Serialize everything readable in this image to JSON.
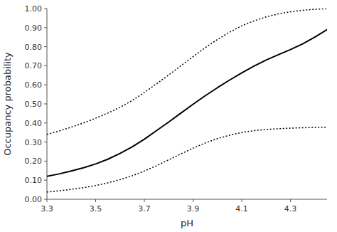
{
  "chart_data": {
    "type": "line",
    "xlabel": "pH",
    "ylabel": "Occupancy probability",
    "x": [
      3.3,
      3.35,
      3.4,
      3.45,
      3.5,
      3.55,
      3.6,
      3.65,
      3.7,
      3.75,
      3.8,
      3.85,
      3.9,
      3.95,
      4.0,
      4.05,
      4.1,
      4.15,
      4.2,
      4.25,
      4.3,
      4.35,
      4.4,
      4.45
    ],
    "series": [
      {
        "color": "#000000",
        "line_style": "solid",
        "values": [
          0.12,
          0.133,
          0.148,
          0.165,
          0.185,
          0.21,
          0.24,
          0.275,
          0.315,
          0.36,
          0.405,
          0.452,
          0.498,
          0.543,
          0.585,
          0.625,
          0.663,
          0.698,
          0.73,
          0.758,
          0.785,
          0.815,
          0.85,
          0.89
        ]
      },
      {
        "color": "#000000",
        "line_style": "dotted",
        "values": [
          0.34,
          0.358,
          0.378,
          0.4,
          0.425,
          0.452,
          0.482,
          0.518,
          0.56,
          0.605,
          0.652,
          0.7,
          0.748,
          0.795,
          0.838,
          0.876,
          0.91,
          0.935,
          0.956,
          0.972,
          0.983,
          0.991,
          0.996,
          0.999
        ]
      },
      {
        "color": "#000000",
        "line_style": "dotted",
        "values": [
          0.038,
          0.044,
          0.052,
          0.061,
          0.072,
          0.086,
          0.103,
          0.123,
          0.148,
          0.176,
          0.207,
          0.238,
          0.268,
          0.295,
          0.318,
          0.336,
          0.35,
          0.36,
          0.366,
          0.37,
          0.373,
          0.375,
          0.377,
          0.378
        ]
      }
    ],
    "xlim": [
      3.3,
      4.45
    ],
    "ylim": [
      0.0,
      1.0
    ],
    "xticks": [
      3.3,
      3.5,
      3.7,
      3.9,
      4.1,
      4.3
    ],
    "yticks": [
      {
        "value": 0.0,
        "label": "0.00"
      },
      {
        "value": 0.1,
        "label": "0.10"
      },
      {
        "value": 0.2,
        "label": "0.20"
      },
      {
        "value": 0.3,
        "label": "0.30"
      },
      {
        "value": 0.4,
        "label": "0.40"
      },
      {
        "value": 0.5,
        "label": "0.50"
      },
      {
        "value": 0.6,
        "label": "0.60"
      },
      {
        "value": 0.7,
        "label": "0.70"
      },
      {
        "value": 0.8,
        "label": "0.80"
      },
      {
        "value": 0.9,
        "label": "0.90"
      },
      {
        "value": 1.0,
        "label": "1.00"
      }
    ]
  }
}
